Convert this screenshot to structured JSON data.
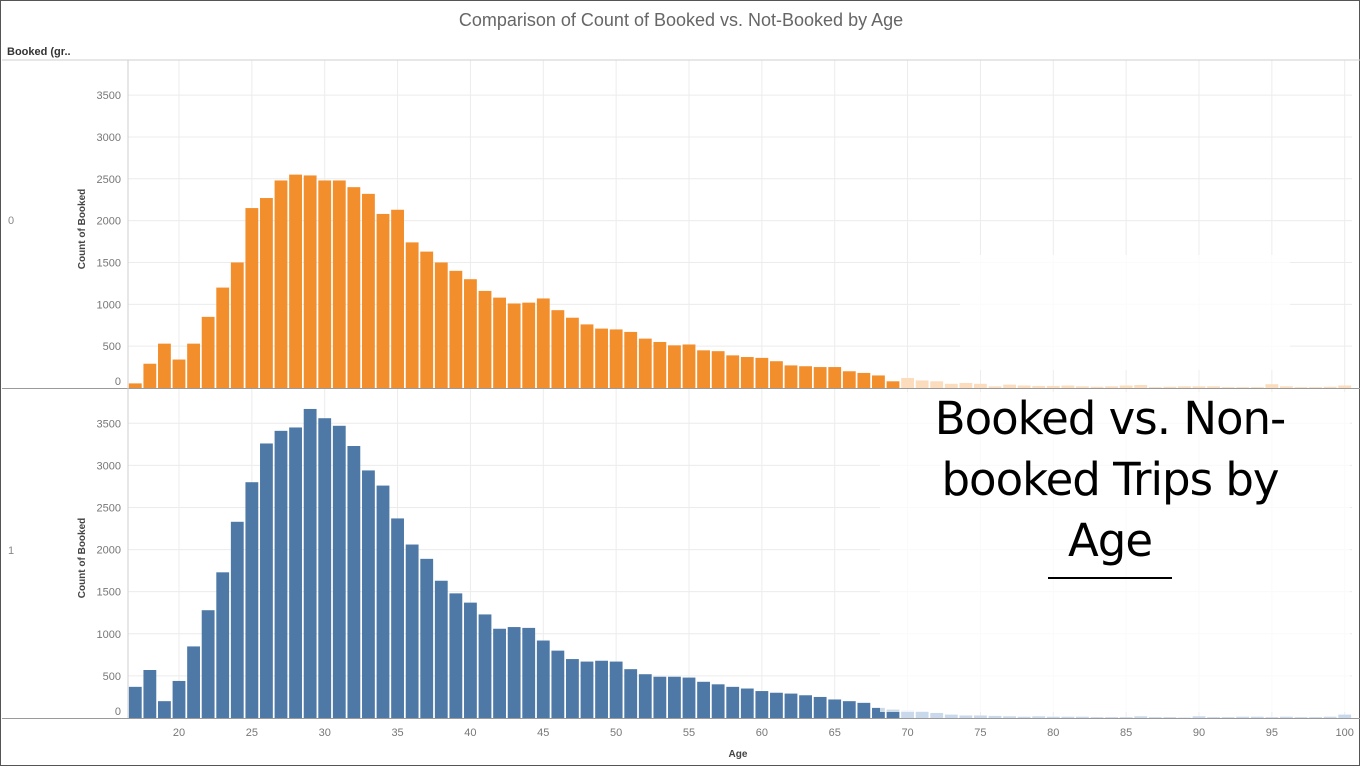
{
  "title": "Comparison of Count of Booked vs. Not-Booked by Age",
  "row_header": "Booked (gr..",
  "overlay": {
    "line1": "Booked vs. Non-",
    "line2": "booked Trips by",
    "line3": "Age"
  },
  "colors": {
    "orange": "#f28e2b",
    "orange_light": "#fbdcbd",
    "blue": "#4e79a7",
    "blue_light": "#c9d8ea",
    "grid": "#ececec"
  },
  "chart_data": {
    "type": "bar",
    "xlabel": "Age",
    "ylabel": "Count of Booked",
    "xlim": [
      16.5,
      100.5
    ],
    "x_ticks": [
      20,
      25,
      30,
      35,
      40,
      45,
      50,
      55,
      60,
      65,
      70,
      75,
      80,
      85,
      90,
      95,
      100
    ],
    "ylim": [
      0,
      3800
    ],
    "y_ticks": [
      0,
      500,
      1000,
      1500,
      2000,
      2500,
      3000,
      3500
    ],
    "grid": true,
    "x": [
      17,
      18,
      19,
      20,
      21,
      22,
      23,
      24,
      25,
      26,
      27,
      28,
      29,
      30,
      31,
      32,
      33,
      34,
      35,
      36,
      37,
      38,
      39,
      40,
      41,
      42,
      43,
      44,
      45,
      46,
      47,
      48,
      49,
      50,
      51,
      52,
      53,
      54,
      55,
      56,
      57,
      58,
      59,
      60,
      61,
      62,
      63,
      64,
      65,
      66,
      67,
      68,
      69,
      70,
      71,
      72,
      73,
      74,
      75,
      76,
      77,
      78,
      79,
      80,
      81,
      82,
      83,
      84,
      85,
      86,
      87,
      88,
      89,
      90,
      91,
      92,
      93,
      94,
      95,
      96,
      97,
      98,
      99,
      100
    ],
    "series": [
      {
        "booked": "0",
        "values": [
          55,
          290,
          530,
          340,
          530,
          850,
          1200,
          1500,
          2150,
          2270,
          2480,
          2550,
          2540,
          2480,
          2480,
          2400,
          2320,
          2080,
          2130,
          1740,
          1630,
          1500,
          1400,
          1300,
          1160,
          1080,
          1010,
          1020,
          1070,
          930,
          840,
          760,
          710,
          700,
          670,
          590,
          550,
          510,
          520,
          450,
          440,
          390,
          370,
          360,
          320,
          270,
          260,
          250,
          250,
          200,
          180,
          150,
          80,
          120,
          90,
          80,
          50,
          60,
          50,
          20,
          40,
          30,
          25,
          25,
          30,
          20,
          15,
          20,
          30,
          35,
          10,
          15,
          20,
          20,
          20,
          10,
          10,
          10,
          45,
          20,
          10,
          10,
          15,
          30
        ]
      },
      {
        "booked": "1",
        "values": [
          370,
          570,
          200,
          440,
          850,
          1280,
          1730,
          2330,
          2800,
          3260,
          3410,
          3450,
          3670,
          3560,
          3470,
          3230,
          2940,
          2760,
          2370,
          2060,
          1890,
          1630,
          1480,
          1370,
          1230,
          1060,
          1080,
          1070,
          920,
          800,
          700,
          670,
          680,
          670,
          580,
          520,
          490,
          490,
          480,
          430,
          400,
          370,
          350,
          320,
          300,
          290,
          270,
          250,
          220,
          200,
          180,
          120,
          100,
          90,
          80,
          60,
          40,
          30,
          30,
          25,
          20,
          15,
          20,
          15,
          15,
          15,
          10,
          10,
          10,
          20,
          10,
          10,
          5,
          20,
          10,
          10,
          15,
          15,
          10,
          15,
          10,
          10,
          15,
          40
        ]
      }
    ]
  }
}
